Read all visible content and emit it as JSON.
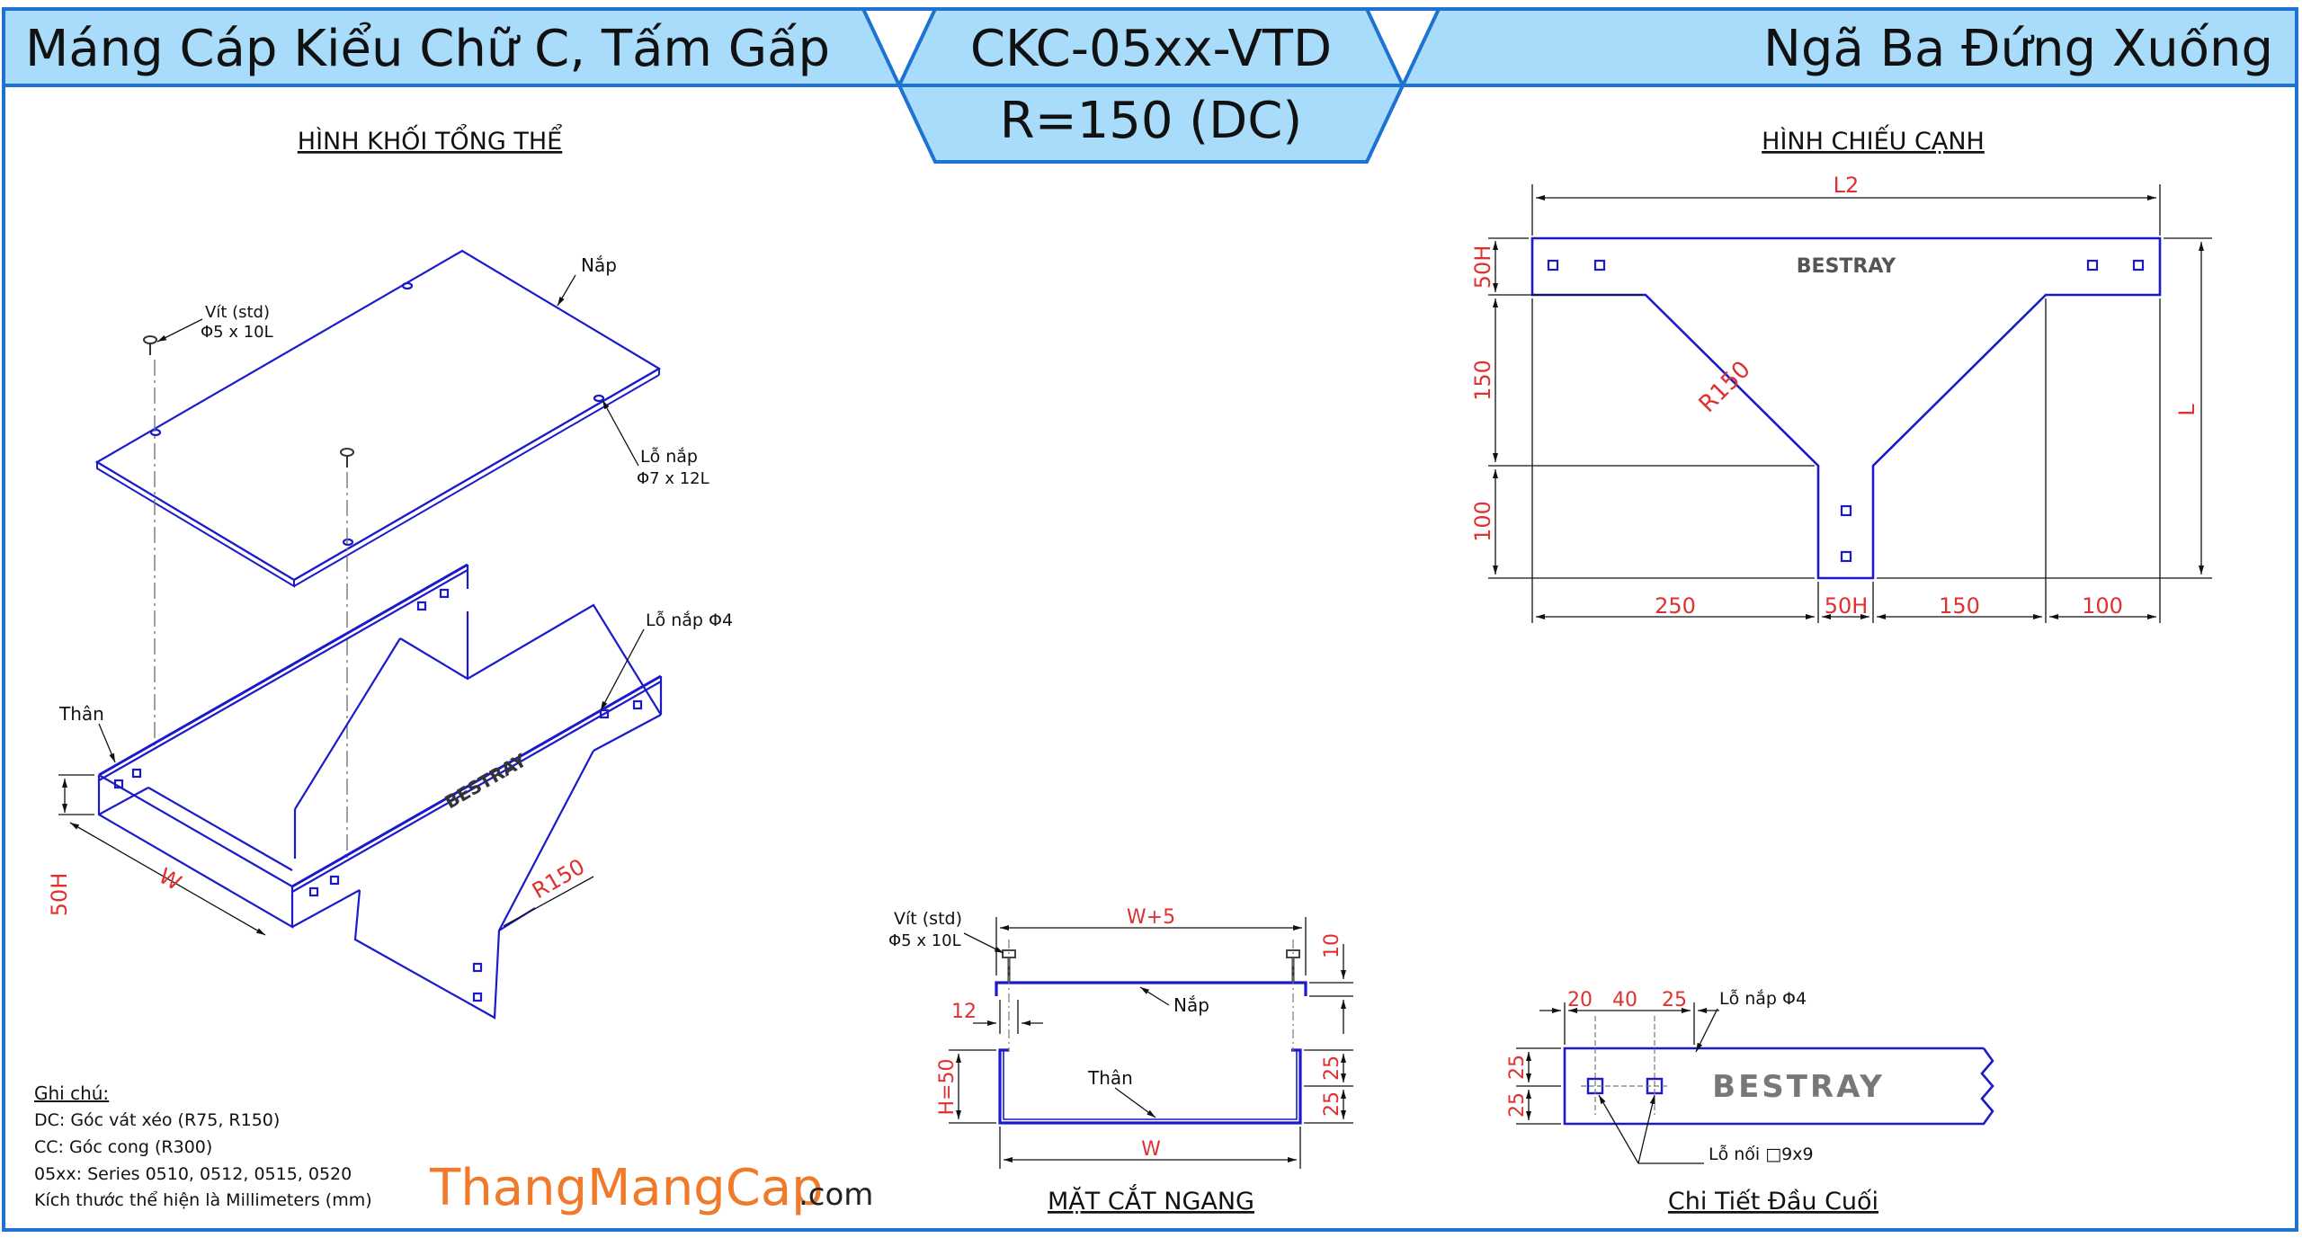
{
  "title": {
    "left": "Máng Cáp Kiểu Chữ C, Tấm Gấp",
    "code": "CKC-05xx-VTD",
    "radius": "R=150 (DC)",
    "right": "Ngã Ba Đứng Xuống"
  },
  "brand": "BESTRAY",
  "views": {
    "isometric": {
      "title": "HÌNH KHỐI TỔNG THỂ",
      "labels": {
        "cover": "Nắp",
        "screw": "Vít (std)",
        "screw_size": "Φ5 x 10L",
        "cover_hole": "Lỗ nắp",
        "cover_hole_size": "Φ7 x 12L",
        "cover_hole_4": "Lỗ nắp Φ4",
        "body": "Thân"
      },
      "dims": {
        "height": "50H",
        "width": "W",
        "radius": "R150"
      }
    },
    "side": {
      "title": "HÌNH CHIẾU CẠNH",
      "dims": {
        "l2": "L2",
        "l": "L",
        "v1": "50H",
        "v2": "150",
        "v3": "100",
        "b1": "250",
        "b2": "50H",
        "b3": "150",
        "b4": "100",
        "radius": "R150"
      }
    },
    "cross_section": {
      "title": "MẶT CẮT NGANG",
      "labels": {
        "screw": "Vít (std)",
        "screw_size": "Φ5 x 10L",
        "cover": "Nắp",
        "body": "Thân"
      },
      "dims": {
        "w5": "W+5",
        "d10": "10",
        "d12": "12",
        "h": "H=50",
        "d25a": "25",
        "d25b": "25",
        "w": "W"
      }
    },
    "end_detail": {
      "title": "Chi Tiết Đầu Cuối",
      "labels": {
        "cover_hole_4": "Lỗ nắp Φ4",
        "joint_hole": "Lỗ nối □9x9"
      },
      "dims": {
        "d20": "20",
        "d40": "40",
        "d25": "25",
        "v25a": "25",
        "v25b": "25"
      }
    }
  },
  "notes": {
    "title": "Ghi chú:",
    "lines": [
      "DC: Góc vát xéo (R75, R150)",
      "CC: Góc cong (R300)",
      "05xx: Series 0510, 0512, 0515, 0520",
      "Kích thước thể hiện là Millimeters (mm)"
    ]
  },
  "watermark": {
    "name": "ThangMangCap",
    "domain": ".com"
  },
  "colors": {
    "title_fill": "#a8dcfa",
    "border": "#1e73d2",
    "part_line": "#1a1acc",
    "dimension_text": "#e03030",
    "watermark": "#f07a2a"
  }
}
